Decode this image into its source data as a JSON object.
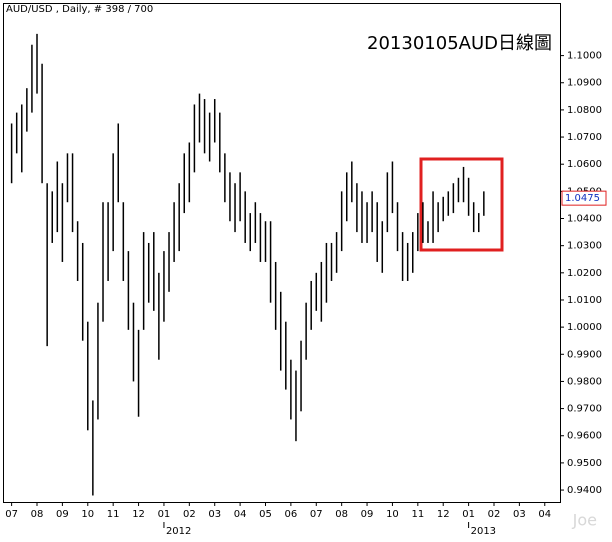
{
  "chart_data": {
    "type": "range",
    "title": "AUD/USD , Daily, # 398 / 700",
    "annotation": "20130105AUD日線圖",
    "watermark": "Joe",
    "last_price": 1.0475,
    "color": "#000000",
    "x": [
      0,
      0.2,
      0.4,
      0.6,
      0.8,
      1,
      1.2,
      1.4,
      1.6,
      1.8,
      2,
      2.2,
      2.4,
      2.6,
      2.8,
      3,
      3.2,
      3.4,
      3.6,
      3.8,
      4,
      4.2,
      4.4,
      4.6,
      4.8,
      5,
      5.2,
      5.4,
      5.6,
      5.8,
      6,
      6.2,
      6.4,
      6.6,
      6.8,
      7,
      7.2,
      7.4,
      7.6,
      7.8,
      8,
      8.2,
      8.4,
      8.6,
      8.8,
      9,
      9.2,
      9.4,
      9.6,
      9.8,
      10,
      10.2,
      10.4,
      10.6,
      10.8,
      11,
      11.2,
      11.4,
      11.6,
      11.8,
      12,
      12.2,
      12.4,
      12.6,
      12.8,
      13,
      13.2,
      13.4,
      13.6,
      13.8,
      14,
      14.2,
      14.4,
      14.6,
      14.8,
      15,
      15.2,
      15.4,
      15.6,
      15.8,
      16,
      16.2,
      16.4,
      16.6,
      16.8,
      17,
      17.2,
      17.4,
      17.6,
      17.8,
      18,
      18.2,
      18.4,
      18.6
    ],
    "high": [
      1.075,
      1.079,
      1.082,
      1.088,
      1.104,
      1.108,
      1.097,
      1.053,
      1.05,
      1.061,
      1.053,
      1.064,
      1.064,
      1.039,
      1.031,
      1.002,
      0.973,
      1.009,
      1.046,
      1.046,
      1.064,
      1.075,
      1.046,
      1.028,
      1.009,
      0.999,
      1.035,
      1.031,
      1.035,
      1.02,
      1.028,
      1.035,
      1.046,
      1.053,
      1.064,
      1.068,
      1.082,
      1.086,
      1.084,
      1.079,
      1.084,
      1.079,
      1.064,
      1.057,
      1.053,
      1.057,
      1.05,
      1.042,
      1.046,
      1.042,
      1.039,
      1.039,
      1.024,
      1.013,
      1.002,
      0.988,
      0.984,
      0.995,
      1.009,
      1.017,
      1.02,
      1.024,
      1.031,
      1.031,
      1.035,
      1.05,
      1.057,
      1.061,
      1.053,
      1.05,
      1.046,
      1.05,
      1.046,
      1.039,
      1.057,
      1.061,
      1.046,
      1.035,
      1.031,
      1.035,
      1.042,
      1.046,
      1.039,
      1.05,
      1.046,
      1.048,
      1.05,
      1.053,
      1.055,
      1.059,
      1.055,
      1.046,
      1.042,
      1.05
    ],
    "low": [
      1.053,
      1.064,
      1.057,
      1.072,
      1.079,
      1.086,
      1.053,
      0.993,
      1.031,
      1.035,
      1.024,
      1.046,
      1.035,
      1.017,
      0.995,
      0.962,
      0.938,
      0.966,
      1.002,
      1.017,
      1.028,
      1.046,
      1.017,
      0.999,
      0.98,
      0.967,
      0.999,
      1.009,
      1.006,
      0.988,
      1.002,
      1.013,
      1.024,
      1.028,
      1.042,
      1.046,
      1.057,
      1.068,
      1.064,
      1.061,
      1.068,
      1.057,
      1.046,
      1.039,
      1.035,
      1.039,
      1.031,
      1.028,
      1.031,
      1.024,
      1.024,
      1.009,
      0.999,
      0.984,
      0.977,
      0.966,
      0.958,
      0.969,
      0.988,
      0.999,
      1.006,
      1.002,
      1.009,
      1.017,
      1.02,
      1.028,
      1.039,
      1.046,
      1.035,
      1.031,
      1.031,
      1.035,
      1.024,
      1.02,
      1.035,
      1.042,
      1.028,
      1.017,
      1.017,
      1.02,
      1.028,
      1.031,
      1.031,
      1.031,
      1.035,
      1.039,
      1.041,
      1.042,
      1.046,
      1.046,
      1.041,
      1.035,
      1.035,
      1.041
    ],
    "xlim": [
      -0.3,
      21.6
    ],
    "xticks": [
      {
        "value": 0,
        "label": "07"
      },
      {
        "value": 1,
        "label": "08"
      },
      {
        "value": 2,
        "label": "09"
      },
      {
        "value": 3,
        "label": "10"
      },
      {
        "value": 4,
        "label": "11"
      },
      {
        "value": 5,
        "label": "12"
      },
      {
        "value": 6,
        "label": "01"
      },
      {
        "value": 7,
        "label": "02"
      },
      {
        "value": 8,
        "label": "03"
      },
      {
        "value": 9,
        "label": "04"
      },
      {
        "value": 10,
        "label": "05"
      },
      {
        "value": 11,
        "label": "06"
      },
      {
        "value": 12,
        "label": "07"
      },
      {
        "value": 13,
        "label": "08"
      },
      {
        "value": 14,
        "label": "09"
      },
      {
        "value": 15,
        "label": "10"
      },
      {
        "value": 16,
        "label": "11"
      },
      {
        "value": 17,
        "label": "12"
      },
      {
        "value": 18,
        "label": "01"
      },
      {
        "value": 19,
        "label": "02"
      },
      {
        "value": 20,
        "label": "03"
      },
      {
        "value": 21,
        "label": "04"
      }
    ],
    "year_labels": [
      {
        "value": 6,
        "label": "2012"
      },
      {
        "value": 18,
        "label": "2013"
      }
    ],
    "ylim": [
      0.9356,
      1.119
    ],
    "yticks": [
      {
        "value": 0.94,
        "label": "0.9400"
      },
      {
        "value": 0.95,
        "label": "0.9500"
      },
      {
        "value": 0.96,
        "label": "0.9600"
      },
      {
        "value": 0.97,
        "label": "0.9700"
      },
      {
        "value": 0.98,
        "label": "0.9800"
      },
      {
        "value": 0.99,
        "label": "0.9900"
      },
      {
        "value": 1.0,
        "label": "1.0000"
      },
      {
        "value": 1.01,
        "label": "1.0100"
      },
      {
        "value": 1.02,
        "label": "1.0200"
      },
      {
        "value": 1.03,
        "label": "1.0300"
      },
      {
        "value": 1.04,
        "label": "1.0400"
      },
      {
        "value": 1.05,
        "label": "1.0500"
      },
      {
        "value": 1.06,
        "label": "1.0600"
      },
      {
        "value": 1.07,
        "label": "1.0700"
      },
      {
        "value": 1.08,
        "label": "1.0800"
      },
      {
        "value": 1.09,
        "label": "1.0900"
      },
      {
        "value": 1.1,
        "label": "1.1000"
      }
    ]
  }
}
